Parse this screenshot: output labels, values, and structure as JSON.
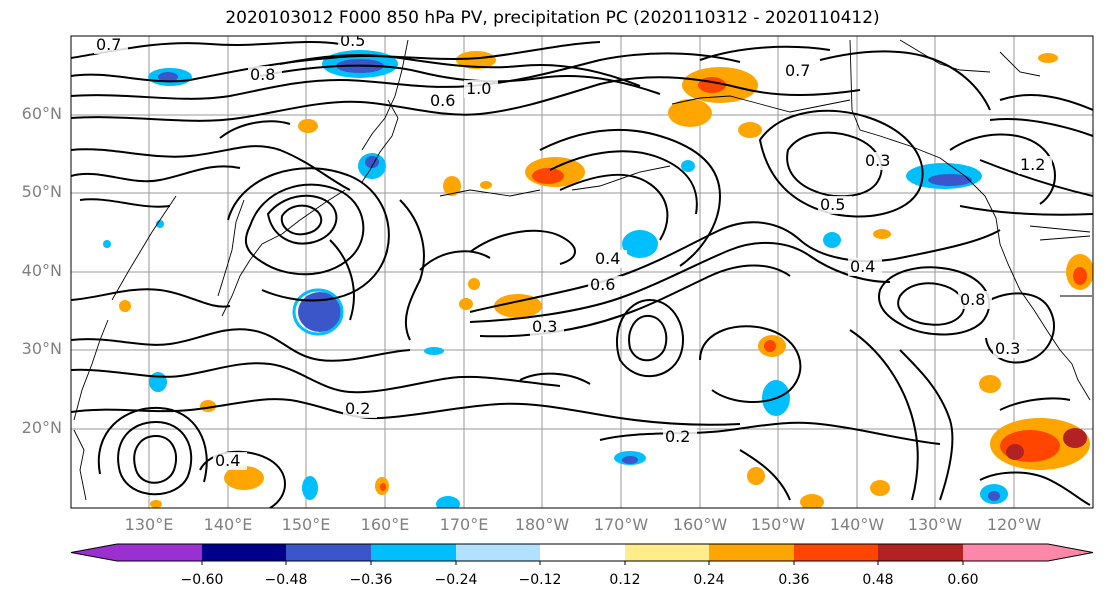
{
  "title": "2020103012 F000 850 hPa PV, precipitation PC (2020110312 - 2020110412)",
  "latitude_labels": [
    "60°N",
    "50°N",
    "40°N",
    "30°N",
    "20°N"
  ],
  "longitude_labels": [
    "130°E",
    "140°E",
    "150°E",
    "160°E",
    "170°E",
    "180°W",
    "170°W",
    "160°W",
    "150°W",
    "140°W",
    "130°W",
    "120°W"
  ],
  "contour_labels": [
    "0.7",
    "0.8",
    "0.5",
    "1.0",
    "0.6",
    "0.4",
    "0.3",
    "0.2",
    "0.6",
    "0.3",
    "0.4",
    "0.8",
    "0.7",
    "0.2",
    "0.4",
    "0.3",
    "0.5",
    "1.2"
  ],
  "colorbar": {
    "tick_labels": [
      "−0.60",
      "−0.48",
      "−0.36",
      "−0.24",
      "−0.12",
      "0.12",
      "0.24",
      "0.36",
      "0.48",
      "0.60"
    ],
    "colors": [
      "#9b30d0",
      "#00008b",
      "#3a56c8",
      "#00bfff",
      "#b0e2ff",
      "#ffffff",
      "#ffec8b",
      "#ffa500",
      "#ff4500",
      "#b22222",
      "#ff88aa"
    ]
  }
}
